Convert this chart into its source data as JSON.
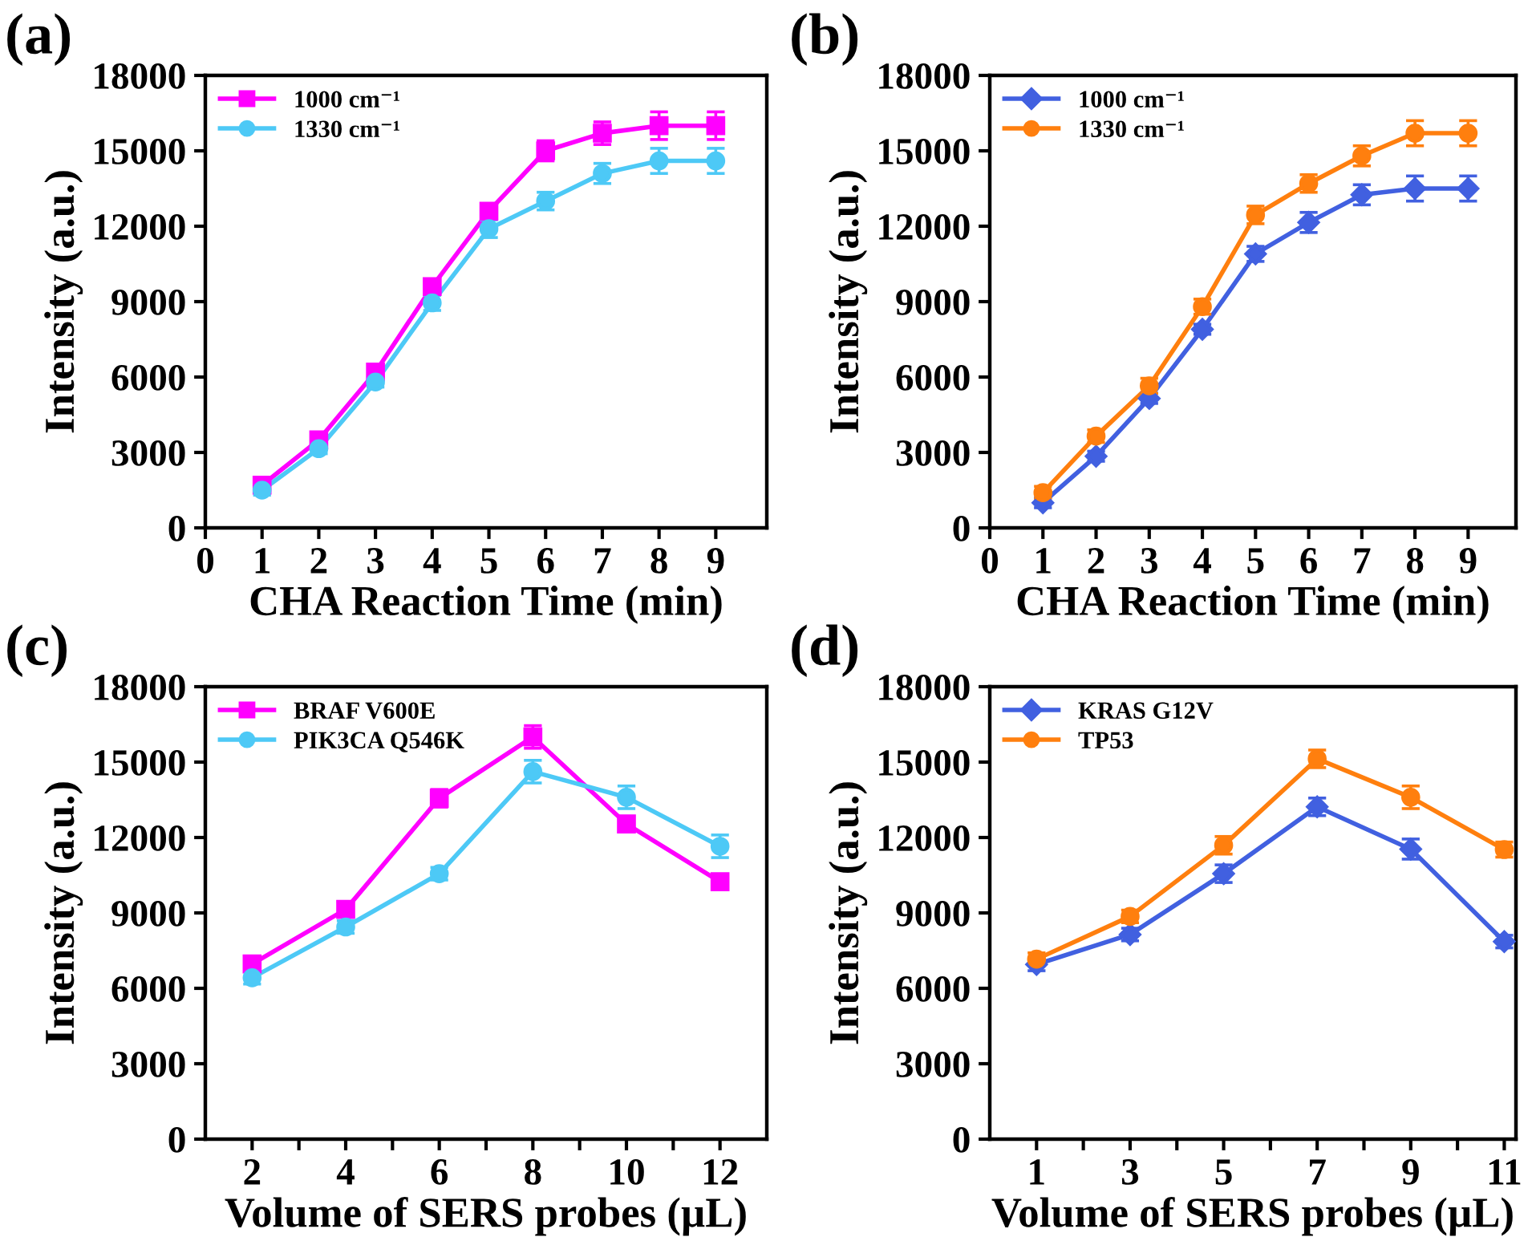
{
  "chart_data": [
    {
      "type": "line",
      "title": "(a)",
      "xlabel": "CHA Reaction Time (min)",
      "ylabel": "Intensity (a.u.)",
      "x": [
        1,
        2,
        3,
        4,
        5,
        6,
        7,
        8,
        9
      ],
      "xlim": [
        0,
        9.9
      ],
      "xticks": [
        0,
        1,
        2,
        3,
        4,
        5,
        6,
        7,
        8,
        9
      ],
      "ylim": [
        0,
        18000
      ],
      "yticks": [
        0,
        3000,
        6000,
        9000,
        12000,
        15000,
        18000
      ],
      "grid": false,
      "legend": "top left",
      "series": [
        {
          "name": "1000 cm⁻¹",
          "color": "#ff00ff",
          "marker": "square",
          "values": [
            1700,
            3500,
            6200,
            9600,
            12600,
            15000,
            15700,
            16000,
            16000
          ],
          "errors": [
            200,
            200,
            200,
            250,
            300,
            400,
            450,
            550,
            550
          ]
        },
        {
          "name": "1330 cm⁻¹",
          "color": "#4dc9f6",
          "marker": "circle",
          "values": [
            1500,
            3150,
            5800,
            8950,
            11900,
            13000,
            14100,
            14600,
            14600
          ],
          "errors": [
            200,
            200,
            200,
            300,
            350,
            350,
            400,
            500,
            500
          ]
        }
      ]
    },
    {
      "type": "line",
      "title": "(b)",
      "xlabel": "CHA Reaction Time (min)",
      "ylabel": "Intensity (a.u.)",
      "x": [
        1,
        2,
        3,
        4,
        5,
        6,
        7,
        8,
        9
      ],
      "xlim": [
        0,
        9.9
      ],
      "xticks": [
        0,
        1,
        2,
        3,
        4,
        5,
        6,
        7,
        8,
        9
      ],
      "ylim": [
        0,
        18000
      ],
      "yticks": [
        0,
        3000,
        6000,
        9000,
        12000,
        15000,
        18000
      ],
      "grid": false,
      "legend": "top left",
      "series": [
        {
          "name": "1000 cm⁻¹",
          "color": "#4160e0",
          "marker": "diamond",
          "values": [
            1000,
            2850,
            5150,
            7900,
            10900,
            12150,
            13250,
            13500,
            13500
          ],
          "errors": [
            200,
            200,
            200,
            200,
            300,
            400,
            400,
            500,
            500
          ]
        },
        {
          "name": "1330 cm⁻¹",
          "color": "#ff7f0e",
          "marker": "circle",
          "values": [
            1400,
            3650,
            5650,
            8800,
            12450,
            13700,
            14800,
            15700,
            15700
          ],
          "errors": [
            250,
            250,
            300,
            300,
            350,
            350,
            400,
            500,
            500
          ]
        }
      ]
    },
    {
      "type": "line",
      "title": "(c)",
      "xlabel": "Volume of SERS probes (µL)",
      "ylabel": "Intensity (a.u.)",
      "x": [
        2,
        4,
        6,
        8,
        10,
        12
      ],
      "xlim": [
        1,
        13
      ],
      "xticks": [
        2,
        {
          "value": 3,
          "label": null
        },
        4,
        {
          "value": 5,
          "label": null
        },
        6,
        {
          "value": 7,
          "label": null
        },
        8,
        {
          "value": 9,
          "label": null
        },
        10,
        {
          "value": 11,
          "label": null
        },
        12
      ],
      "ylim": [
        0,
        18000
      ],
      "yticks": [
        0,
        3000,
        6000,
        9000,
        12000,
        15000,
        18000
      ],
      "grid": false,
      "legend": "top left",
      "series": [
        {
          "name": "BRAF V600E",
          "color": "#ff00ff",
          "marker": "square",
          "values": [
            6970,
            9140,
            13560,
            16000,
            12540,
            10240
          ],
          "errors": [
            300,
            300,
            350,
            450,
            300,
            250
          ]
        },
        {
          "name": "PIK3CA Q546K",
          "color": "#4dc9f6",
          "marker": "circle",
          "values": [
            6420,
            8440,
            10560,
            14620,
            13600,
            11650
          ],
          "errors": [
            250,
            250,
            250,
            450,
            450,
            450
          ]
        }
      ]
    },
    {
      "type": "line",
      "title": "(d)",
      "xlabel": "Volume of SERS probes (µL)",
      "ylabel": "Intensity (a.u.)",
      "x": [
        1,
        3,
        5,
        7,
        9,
        11
      ],
      "xlim": [
        0,
        11.25
      ],
      "xticks": [
        1,
        {
          "value": 2,
          "label": null
        },
        3,
        {
          "value": 4,
          "label": null
        },
        5,
        {
          "value": 6,
          "label": null
        },
        7,
        {
          "value": 8,
          "label": null
        },
        9,
        {
          "value": 10,
          "label": null
        },
        11
      ],
      "ylim": [
        0,
        18000
      ],
      "yticks": [
        0,
        3000,
        6000,
        9000,
        12000,
        15000,
        18000
      ],
      "grid": false,
      "legend": "top left",
      "series": [
        {
          "name": "KRAS G12V",
          "color": "#4160e0",
          "marker": "diamond",
          "values": [
            6950,
            8140,
            10560,
            13220,
            11540,
            7860
          ],
          "errors": [
            250,
            250,
            350,
            350,
            400,
            250
          ]
        },
        {
          "name": "TP53",
          "color": "#ff7f0e",
          "marker": "circle",
          "values": [
            7160,
            8860,
            11690,
            15130,
            13600,
            11520
          ],
          "errors": [
            250,
            250,
            350,
            350,
            450,
            300
          ]
        }
      ]
    }
  ]
}
